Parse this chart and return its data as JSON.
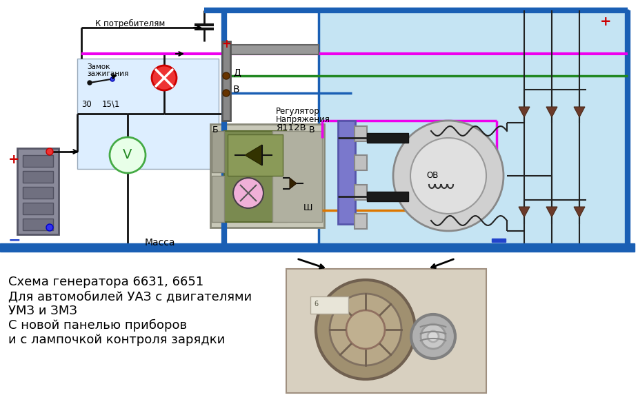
{
  "bg_color": "#ffffff",
  "title_lines": [
    "Схема генератора 6631, 6651",
    "Для автомобилей УАЗ с двигателями",
    "УМЗ и ЗМЗ",
    "С новой панелью приборов",
    "и с лампочкой контроля зарядки"
  ]
}
